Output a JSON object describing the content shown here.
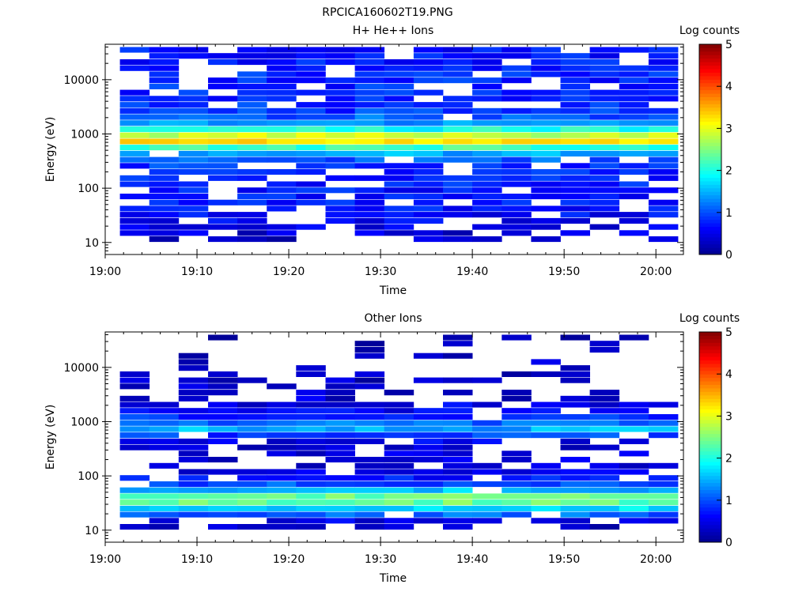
{
  "figure_title": "RPCICA160602T19.PNG",
  "colorbar_scale": [
    "#00008f",
    "#0000ff",
    "#0080ff",
    "#00ffff",
    "#80ff80",
    "#ffff00",
    "#ff8000",
    "#ff0000",
    "#800000"
  ],
  "chart_data": [
    {
      "type": "heatmap",
      "title": "H+ He++ Ions",
      "xlabel": "Time",
      "ylabel": "Energy (eV)",
      "y_scale": "log",
      "y_tick_labels": [
        "10",
        "100",
        "1000",
        "10000"
      ],
      "y_tick_values": [
        10,
        100,
        1000,
        10000
      ],
      "ylim": [
        6,
        45000
      ],
      "x_tick_labels": [
        "19:00",
        "19:10",
        "19:20",
        "19:30",
        "19:40",
        "19:50",
        "20:00"
      ],
      "x_tick_minutes": [
        0,
        10,
        20,
        30,
        40,
        50,
        60
      ],
      "xlim_minutes": [
        0,
        63
      ],
      "time_bin_start_minutes": 1.6,
      "time_bin_width_minutes": 3.2,
      "time_bins": 19,
      "colorbar_label": "Log counts",
      "colorbar_range": [
        0,
        5
      ],
      "colorbar_ticks": [
        "0",
        "1",
        "2",
        "3",
        "4",
        "5"
      ],
      "energy_profile": [
        {
          "energy": 10,
          "value": 0.3,
          "fill": 0.4
        },
        {
          "energy": 14,
          "value": 0.4,
          "fill": 0.55
        },
        {
          "energy": 20,
          "value": 0.5,
          "fill": 0.6
        },
        {
          "energy": 30,
          "value": 0.6,
          "fill": 0.7
        },
        {
          "energy": 45,
          "value": 0.7,
          "fill": 0.75
        },
        {
          "energy": 70,
          "value": 0.7,
          "fill": 0.75
        },
        {
          "energy": 100,
          "value": 0.7,
          "fill": 0.75
        },
        {
          "energy": 150,
          "value": 0.8,
          "fill": 0.8
        },
        {
          "energy": 220,
          "value": 0.8,
          "fill": 0.8
        },
        {
          "energy": 320,
          "value": 1.0,
          "fill": 0.85
        },
        {
          "energy": 450,
          "value": 1.5,
          "fill": 0.95
        },
        {
          "energy": 600,
          "value": 2.4,
          "fill": 1.0
        },
        {
          "energy": 750,
          "value": 3.4,
          "fill": 1.0
        },
        {
          "energy": 900,
          "value": 3.0,
          "fill": 1.0
        },
        {
          "energy": 1100,
          "value": 2.2,
          "fill": 1.0
        },
        {
          "energy": 1400,
          "value": 1.6,
          "fill": 1.0
        },
        {
          "energy": 1800,
          "value": 1.2,
          "fill": 0.95
        },
        {
          "energy": 2500,
          "value": 0.9,
          "fill": 0.85
        },
        {
          "energy": 4000,
          "value": 0.8,
          "fill": 0.8
        },
        {
          "energy": 7000,
          "value": 0.8,
          "fill": 0.8
        },
        {
          "energy": 12000,
          "value": 0.8,
          "fill": 0.8
        },
        {
          "energy": 20000,
          "value": 0.7,
          "fill": 0.8
        },
        {
          "energy": 40000,
          "value": 0.7,
          "fill": 0.8
        }
      ]
    },
    {
      "type": "heatmap",
      "title": "Other Ions",
      "xlabel": "Time",
      "ylabel": "Energy (eV)",
      "y_scale": "log",
      "y_tick_labels": [
        "10",
        "100",
        "1000",
        "10000"
      ],
      "y_tick_values": [
        10,
        100,
        1000,
        10000
      ],
      "ylim": [
        6,
        45000
      ],
      "x_tick_labels": [
        "19:00",
        "19:10",
        "19:20",
        "19:30",
        "19:40",
        "19:50",
        "20:00"
      ],
      "x_tick_minutes": [
        0,
        10,
        20,
        30,
        40,
        50,
        60
      ],
      "xlim_minutes": [
        0,
        63
      ],
      "time_bin_start_minutes": 1.6,
      "time_bin_width_minutes": 3.2,
      "time_bins": 19,
      "colorbar_label": "Log counts",
      "colorbar_range": [
        0,
        5
      ],
      "colorbar_ticks": [
        "0",
        "1",
        "2",
        "3",
        "4",
        "5"
      ],
      "energy_profile": [
        {
          "energy": 10,
          "value": 0.2,
          "fill": 0.35
        },
        {
          "energy": 14,
          "value": 0.4,
          "fill": 0.5
        },
        {
          "energy": 20,
          "value": 1.2,
          "fill": 0.95
        },
        {
          "energy": 28,
          "value": 2.0,
          "fill": 1.0
        },
        {
          "energy": 35,
          "value": 2.6,
          "fill": 1.0
        },
        {
          "energy": 45,
          "value": 2.2,
          "fill": 1.0
        },
        {
          "energy": 60,
          "value": 1.2,
          "fill": 0.95
        },
        {
          "energy": 80,
          "value": 0.8,
          "fill": 0.85
        },
        {
          "energy": 110,
          "value": 0.5,
          "fill": 0.7
        },
        {
          "energy": 160,
          "value": 0.4,
          "fill": 0.6
        },
        {
          "energy": 250,
          "value": 0.4,
          "fill": 0.55
        },
        {
          "energy": 400,
          "value": 0.4,
          "fill": 0.6
        },
        {
          "energy": 550,
          "value": 0.9,
          "fill": 0.9
        },
        {
          "energy": 700,
          "value": 1.5,
          "fill": 1.0
        },
        {
          "energy": 850,
          "value": 1.3,
          "fill": 1.0
        },
        {
          "energy": 1100,
          "value": 0.9,
          "fill": 0.95
        },
        {
          "energy": 1500,
          "value": 0.6,
          "fill": 0.85
        },
        {
          "energy": 2000,
          "value": 0.5,
          "fill": 0.7
        },
        {
          "energy": 3000,
          "value": 0.3,
          "fill": 0.4
        },
        {
          "energy": 5000,
          "value": 0.3,
          "fill": 0.3
        },
        {
          "energy": 9000,
          "value": 0.3,
          "fill": 0.25
        },
        {
          "energy": 16000,
          "value": 0.3,
          "fill": 0.25
        },
        {
          "energy": 30000,
          "value": 0.3,
          "fill": 0.25
        }
      ]
    }
  ]
}
